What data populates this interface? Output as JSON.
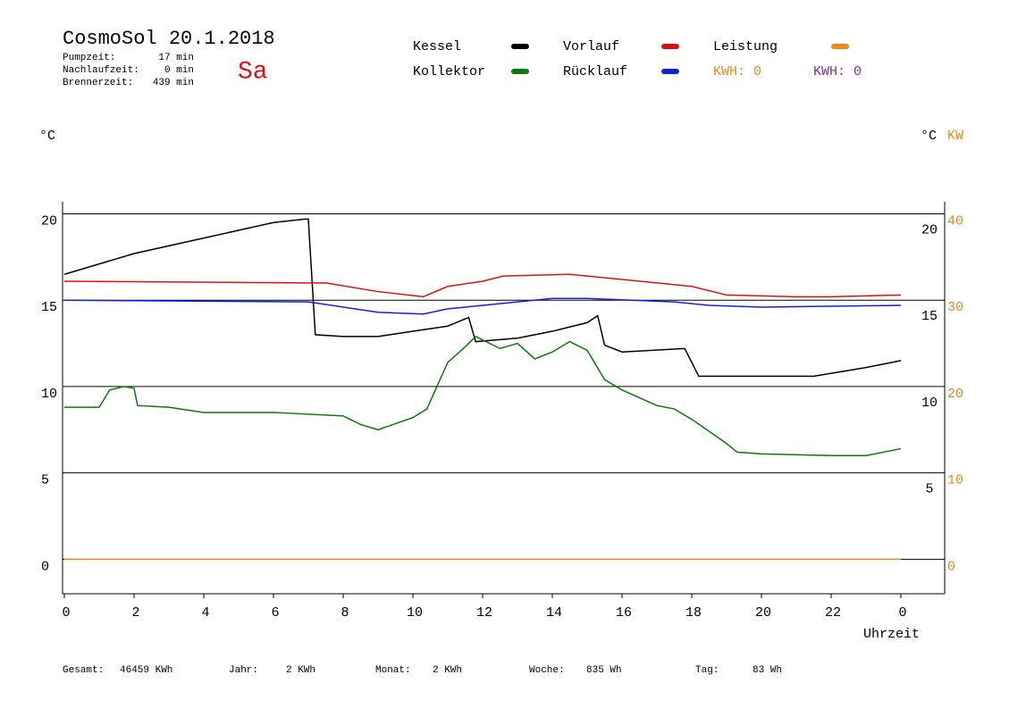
{
  "header": {
    "title": "CosmoSol 20.1.2018",
    "day": "Sa",
    "stats": [
      {
        "label": "Pumpzeit:",
        "value": "17 min"
      },
      {
        "label": "Nachlaufzeit:",
        "value": "0 min"
      },
      {
        "label": "Brennerzeit:",
        "value": "439 min"
      }
    ]
  },
  "chart_data": {
    "type": "line",
    "y_label": "°C",
    "y2_label": "°C",
    "y2_unit": "KW",
    "x_label": "Uhrzeit",
    "xlim": [
      0,
      25.3
    ],
    "xticks": [
      0,
      2,
      4,
      6,
      8,
      10,
      12,
      14,
      16,
      18,
      20,
      22,
      {
        "value": 24,
        "label": "0"
      }
    ],
    "ylim": [
      -2,
      20.7
    ],
    "yticks": [
      0,
      5,
      10,
      15,
      20
    ],
    "y_right_ticks": [
      5,
      10,
      15,
      20
    ],
    "y2lim": [
      -4,
      41.4
    ],
    "y2ticks": [
      0,
      10,
      20,
      30,
      40
    ],
    "grid": true,
    "series": [
      {
        "name": "Kessel",
        "color": "#000000",
        "x": [
          0,
          2,
          4,
          6,
          6.9,
          7.0,
          7.2,
          8,
          9,
          10,
          11,
          11.6,
          11.8,
          13,
          14,
          15,
          15.3,
          15.5,
          16,
          17.8,
          18.2,
          20,
          21.5,
          23,
          24
        ],
        "values": [
          16.5,
          17.7,
          18.6,
          19.5,
          19.7,
          19.7,
          13.0,
          12.9,
          12.9,
          13.2,
          13.5,
          14.0,
          12.6,
          12.8,
          13.2,
          13.7,
          14.1,
          12.4,
          12.0,
          12.2,
          10.6,
          10.6,
          10.6,
          11.1,
          11.5
        ]
      },
      {
        "name": "Kollektor",
        "color": "#0a7a0a",
        "x": [
          0,
          1,
          1.3,
          1.7,
          2,
          2.1,
          3,
          4,
          6,
          8,
          8.5,
          9,
          10,
          10.4,
          11,
          11.5,
          11.8,
          12.5,
          13,
          13.5,
          14,
          14.5,
          15,
          15.5,
          16,
          17,
          17.5,
          18,
          19,
          19.3,
          20,
          22,
          23,
          24
        ],
        "values": [
          8.8,
          8.8,
          9.8,
          10.0,
          9.9,
          8.9,
          8.8,
          8.5,
          8.5,
          8.3,
          7.8,
          7.5,
          8.2,
          8.7,
          11.4,
          12.3,
          12.9,
          12.2,
          12.5,
          11.6,
          12.0,
          12.6,
          12.1,
          10.4,
          9.8,
          8.9,
          8.7,
          8.1,
          6.7,
          6.2,
          6.1,
          6.0,
          6.0,
          6.4
        ]
      },
      {
        "name": "Vorlauf",
        "color": "#dd1010",
        "x": [
          0,
          7,
          7.5,
          9,
          10.3,
          11,
          12,
          12.6,
          14.5,
          16,
          18,
          19,
          21,
          22,
          24
        ],
        "values": [
          16.1,
          16.0,
          16.0,
          15.5,
          15.2,
          15.8,
          16.1,
          16.4,
          16.5,
          16.2,
          15.8,
          15.3,
          15.2,
          15.2,
          15.3
        ]
      },
      {
        "name": "Rücklauf",
        "color": "#1020dd",
        "x": [
          0,
          7,
          8,
          9,
          10.3,
          11,
          12,
          14,
          15,
          17.5,
          18.5,
          20,
          24
        ],
        "values": [
          15.0,
          14.9,
          14.6,
          14.3,
          14.2,
          14.5,
          14.7,
          15.1,
          15.1,
          14.9,
          14.7,
          14.6,
          14.7
        ]
      },
      {
        "name": "Leistung",
        "color": "#f08a1e",
        "axis": "y2",
        "x": [
          0,
          24
        ],
        "values": [
          0,
          0
        ]
      }
    ],
    "kwh_labels": [
      {
        "text": "KWH: 0",
        "color": "#e08a1e"
      },
      {
        "text": "KWH: 0",
        "color": "#8030a0"
      }
    ]
  },
  "footer": [
    {
      "label": "Gesamt:",
      "value": "46459 KWh"
    },
    {
      "label": "Jahr:",
      "value": "2 KWh"
    },
    {
      "label": "Monat:",
      "value": "2 KWh"
    },
    {
      "label": "Woche:",
      "value": "835 Wh"
    },
    {
      "label": "Tag:",
      "value": "83 Wh"
    }
  ]
}
